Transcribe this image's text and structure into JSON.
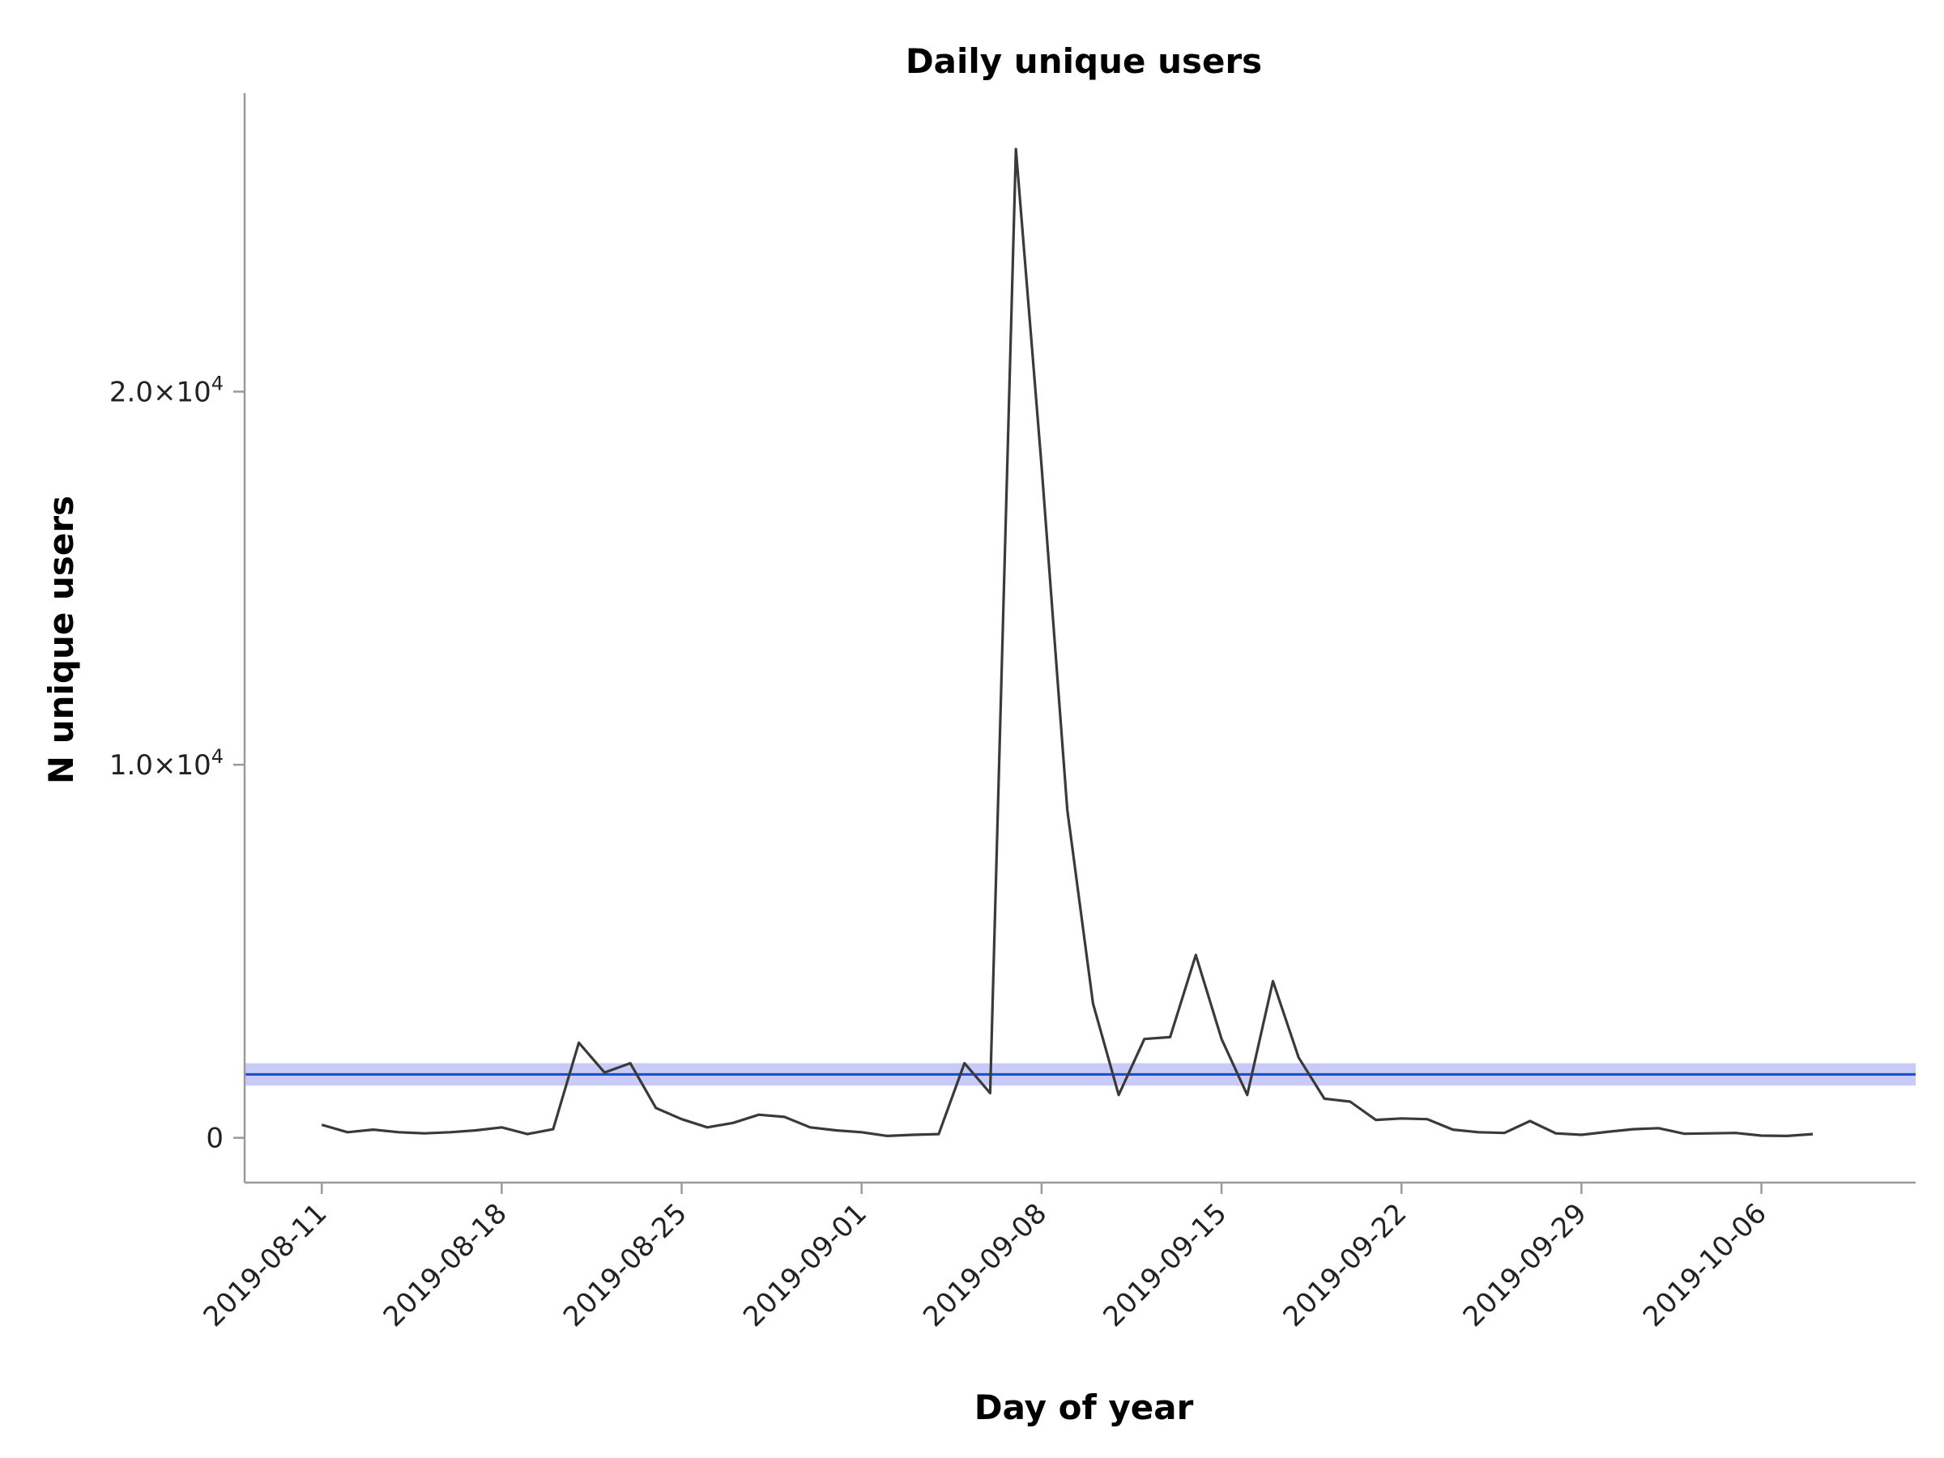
{
  "chart_data": {
    "type": "line",
    "title": "Daily unique users",
    "xlabel": "Day of year",
    "ylabel": "N unique users",
    "x_tick_labels": [
      "2019-08-11",
      "2019-08-18",
      "2019-08-25",
      "2019-09-01",
      "2019-09-08",
      "2019-09-15",
      "2019-09-22",
      "2019-09-29",
      "2019-10-06"
    ],
    "y_ticks": [
      {
        "value": 0,
        "mantissa": "0",
        "exponent": ""
      },
      {
        "value": 10000,
        "mantissa": "1.0×10",
        "exponent": "4"
      },
      {
        "value": 20000,
        "mantissa": "2.0×10",
        "exponent": "4"
      }
    ],
    "ylim": [
      -1200,
      28000
    ],
    "xlim": [
      "2019-08-08",
      "2019-10-12"
    ],
    "grid": false,
    "series": [
      {
        "color": "#3a3a3a",
        "x": [
          "2019-08-11",
          "2019-08-12",
          "2019-08-13",
          "2019-08-14",
          "2019-08-15",
          "2019-08-16",
          "2019-08-17",
          "2019-08-18",
          "2019-08-19",
          "2019-08-20",
          "2019-08-21",
          "2019-08-22",
          "2019-08-23",
          "2019-08-24",
          "2019-08-25",
          "2019-08-26",
          "2019-08-27",
          "2019-08-28",
          "2019-08-29",
          "2019-08-30",
          "2019-08-31",
          "2019-09-01",
          "2019-09-02",
          "2019-09-03",
          "2019-09-04",
          "2019-09-05",
          "2019-09-06",
          "2019-09-07",
          "2019-09-08",
          "2019-09-09",
          "2019-09-10",
          "2019-09-11",
          "2019-09-12",
          "2019-09-13",
          "2019-09-14",
          "2019-09-15",
          "2019-09-16",
          "2019-09-17",
          "2019-09-18",
          "2019-09-19",
          "2019-09-20",
          "2019-09-21",
          "2019-09-22",
          "2019-09-23",
          "2019-09-24",
          "2019-09-25",
          "2019-09-26",
          "2019-09-27",
          "2019-09-28",
          "2019-09-29",
          "2019-09-30",
          "2019-10-01",
          "2019-10-02",
          "2019-10-03",
          "2019-10-04",
          "2019-10-05",
          "2019-10-06",
          "2019-10-07",
          "2019-10-08"
        ],
        "values": [
          350,
          150,
          220,
          150,
          120,
          150,
          200,
          280,
          100,
          230,
          2550,
          1750,
          2000,
          800,
          500,
          280,
          400,
          620,
          560,
          280,
          200,
          150,
          50,
          80,
          100,
          2000,
          1200,
          26500,
          18000,
          8800,
          3600,
          1150,
          2650,
          2700,
          4900,
          2650,
          1150,
          4200,
          2150,
          1050,
          970,
          480,
          520,
          500,
          220,
          150,
          130,
          450,
          120,
          80,
          160,
          230,
          260,
          110,
          120,
          130,
          60,
          50,
          100
        ]
      }
    ],
    "reference_line": {
      "value": 1700,
      "band": [
        1400,
        2000
      ],
      "line_color": "#1f4fd1",
      "band_color": "#c9caf7"
    }
  }
}
